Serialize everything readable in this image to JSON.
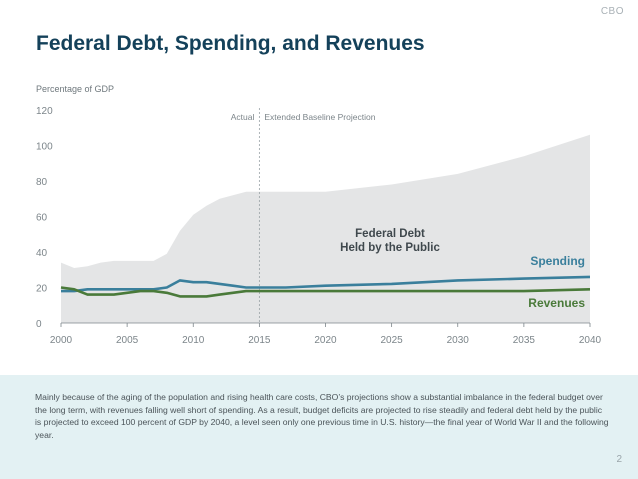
{
  "header": {
    "brand": "CBO",
    "title": "Federal Debt, Spending, and Revenues"
  },
  "colors": {
    "title": "#14415a",
    "debt_area": "#e4e5e6",
    "spending": "#3a7f9c",
    "revenues": "#4a7a3a",
    "axis_text": "#7c858a",
    "caption_bg": "#e3f1f3"
  },
  "chart_data": {
    "type": "area",
    "title": "",
    "ylabel": "Percentage of GDP",
    "xlabel": "",
    "xlim": [
      2000,
      2040
    ],
    "ylim": [
      0,
      120
    ],
    "x_ticks": [
      "2000",
      "2005",
      "2010",
      "2015",
      "2020",
      "2025",
      "2030",
      "2035",
      "2040"
    ],
    "y_ticks": [
      "0",
      "20",
      "40",
      "60",
      "80",
      "100",
      "120"
    ],
    "grid": false,
    "divider": {
      "x": 2015,
      "left_label": "Actual",
      "right_label": "Extended Baseline Projection"
    },
    "series": [
      {
        "name": "Federal Debt Held by the Public",
        "kind": "area",
        "x": [
          2000,
          2001,
          2002,
          2003,
          2004,
          2005,
          2006,
          2007,
          2008,
          2009,
          2010,
          2011,
          2012,
          2013,
          2014,
          2015,
          2017,
          2020,
          2025,
          2030,
          2035,
          2040
        ],
        "y": [
          34,
          31,
          32,
          34,
          35,
          35,
          35,
          35,
          39,
          52,
          61,
          66,
          70,
          72,
          74,
          74,
          74,
          74,
          78,
          84,
          94,
          106
        ]
      },
      {
        "name": "Spending",
        "kind": "line",
        "x": [
          2000,
          2001,
          2002,
          2003,
          2004,
          2005,
          2006,
          2007,
          2008,
          2009,
          2010,
          2011,
          2012,
          2013,
          2014,
          2015,
          2017,
          2020,
          2025,
          2030,
          2035,
          2040
        ],
        "y": [
          18,
          18,
          19,
          19,
          19,
          19,
          19,
          19,
          20,
          24,
          23,
          23,
          22,
          21,
          20,
          20,
          20,
          21,
          22,
          24,
          25,
          26
        ]
      },
      {
        "name": "Revenues",
        "kind": "line",
        "x": [
          2000,
          2001,
          2002,
          2003,
          2004,
          2005,
          2006,
          2007,
          2008,
          2009,
          2010,
          2011,
          2012,
          2013,
          2014,
          2015,
          2017,
          2020,
          2025,
          2030,
          2035,
          2040
        ],
        "y": [
          20,
          19,
          16,
          16,
          16,
          17,
          18,
          18,
          17,
          15,
          15,
          15,
          16,
          17,
          18,
          18,
          18,
          18,
          18,
          18,
          18,
          19
        ]
      }
    ]
  },
  "caption": "Mainly because of the aging of the population and rising health care costs, CBO’s projections show a substantial imbalance in the federal budget over the long term, with revenues falling well short of spending. As a result, budget deficits are projected to rise steadily and federal debt held by the public is projected to exceed 100 percent of GDP by 2040, a level seen only one previous time in U.S. history—the final year of World War II and the following year.",
  "page_number": "2"
}
